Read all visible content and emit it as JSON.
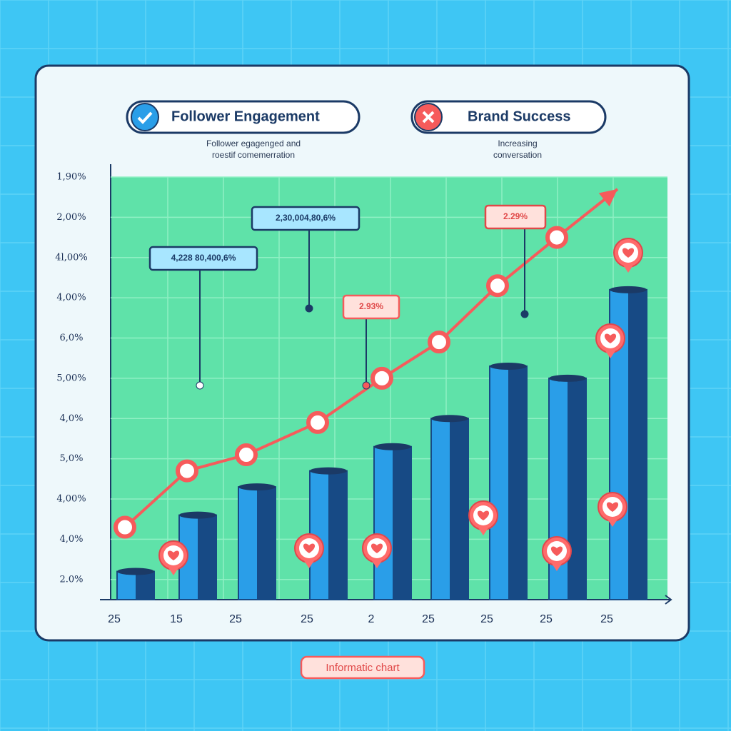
{
  "chart_data": {
    "type": "bar",
    "categories": [
      "25",
      "15",
      "25",
      "25",
      "2",
      "25",
      "25",
      "25",
      "25"
    ],
    "series": [
      {
        "name": "Follower Engagement",
        "type": "bar",
        "color": "#2a9ee8",
        "values": [
          1.2,
          2.6,
          3.3,
          3.7,
          4.3,
          5.0,
          6.3,
          6.0,
          8.2
        ]
      },
      {
        "name": "Brand Success",
        "type": "line",
        "color": "#f65b5b",
        "values": [
          2.3,
          3.7,
          4.1,
          4.9,
          6.0,
          6.9,
          8.3,
          9.5,
          10.7
        ]
      }
    ],
    "subtitles": [
      [
        "Follower egagenged and",
        "roestif comemerration"
      ],
      [
        "Increasing",
        "conversation"
      ]
    ],
    "annotations": [
      "4,228 80,400,6%",
      "2,30,004,80,6%",
      "2.93%",
      "2.29%"
    ],
    "ylim": [
      0.5,
      11
    ],
    "yticks": [
      {
        "value": 1,
        "label": "2.0%"
      },
      {
        "value": 2,
        "label": "4,0%"
      },
      {
        "value": 3,
        "label": "4,00%"
      },
      {
        "value": 4,
        "label": "5,0%"
      },
      {
        "value": 5,
        "label": "4,0%"
      },
      {
        "value": 6,
        "label": "5,00%"
      },
      {
        "value": 7,
        "label": "6,0%"
      },
      {
        "value": 8,
        "label": "4,00%"
      },
      {
        "value": 9,
        "label": "4l,00%"
      },
      {
        "value": 10,
        "label": "2,00%"
      },
      {
        "value": 11,
        "label": "1,90%"
      }
    ],
    "grid": true,
    "footer": "Informatic chart"
  }
}
